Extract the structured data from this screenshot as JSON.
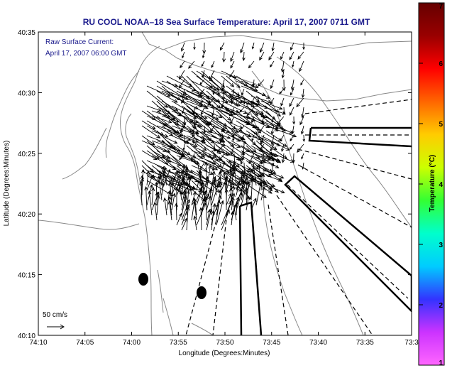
{
  "chart_data": {
    "type": "map",
    "title": "RU COOL  NOAA–18  Sea Surface Temperature:  April 17, 2007 0711 GMT",
    "annotation_lines": [
      "Raw Surface Current:",
      "April 17, 2007 06:00 GMT"
    ],
    "xlabel": "Longitude (Degrees:Minutes)",
    "ylabel": "Latitude (Degrees:Minutes)",
    "x_ticks": [
      "74:10",
      "74:05",
      "74:00",
      "73:55",
      "73:50",
      "73:45",
      "73:40",
      "73:35",
      "73:3"
    ],
    "y_ticks": [
      "40:35",
      "40:30",
      "40:25",
      "40:20",
      "40:15",
      "40:10"
    ],
    "xlim": [
      "74:10",
      "73:30"
    ],
    "ylim": [
      "40:10",
      "40:35"
    ],
    "grid": false,
    "scale_label": "50 cm/s",
    "colorbar": {
      "label": "Temperature (°C)",
      "range": [
        1,
        7
      ],
      "ticks": [
        "1",
        "2",
        "3",
        "4",
        "5",
        "6",
        "7"
      ],
      "colors": [
        "#ff66ff",
        "#cc33ff",
        "#3333ff",
        "#00ccff",
        "#00ffcc",
        "#33ff33",
        "#ccff00",
        "#ffcc00",
        "#ff6600",
        "#ff0000",
        "#990000",
        "#660000"
      ]
    },
    "colors": {
      "title": "#1a1a8c",
      "annotation": "#1a1a8c",
      "land_contour": "#888888",
      "vectors": "#000000"
    }
  }
}
